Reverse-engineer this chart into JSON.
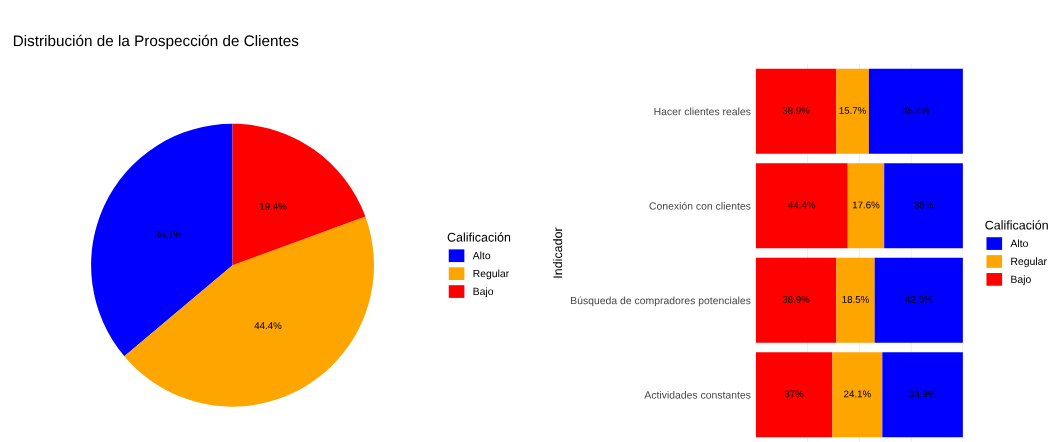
{
  "chart_data": [
    {
      "type": "pie",
      "title": "Distribución de la Prospección de Clientes",
      "legend_title": "Calificación",
      "legend": "right",
      "categories": [
        "Alto",
        "Regular",
        "Bajo"
      ],
      "values": [
        36.1,
        44.4,
        19.4
      ],
      "colors": [
        "#0000ff",
        "#ffa500",
        "#ff0000"
      ],
      "value_labels": [
        "36.1%",
        "44.4%",
        "19.4%"
      ]
    },
    {
      "type": "bar",
      "orientation": "horizontal",
      "stacked": true,
      "ylabel": "Indicador",
      "legend_title": "Calificación",
      "legend": "right",
      "grid": true,
      "tick_labels": "y",
      "categories": [
        "Hacer clientes reales",
        "Conexión con clientes",
        "Búsqueda de compradores potenciales",
        "Actividades constantes"
      ],
      "series": [
        {
          "name": "Bajo",
          "color": "#ff0000",
          "values": [
            38.9,
            44.4,
            38.9,
            37
          ],
          "value_labels": [
            "38.9%",
            "44.4%",
            "38.9%",
            "37%"
          ]
        },
        {
          "name": "Regular",
          "color": "#ffa500",
          "values": [
            15.7,
            17.6,
            18.5,
            24.1
          ],
          "value_labels": [
            "15.7%",
            "17.6%",
            "18.5%",
            "24.1%"
          ]
        },
        {
          "name": "Alto",
          "color": "#0000ff",
          "values": [
            45.4,
            38,
            42.6,
            38.9
          ],
          "value_labels": [
            "45.4%",
            "38%",
            "42.6%",
            "38.9%"
          ]
        }
      ]
    }
  ]
}
